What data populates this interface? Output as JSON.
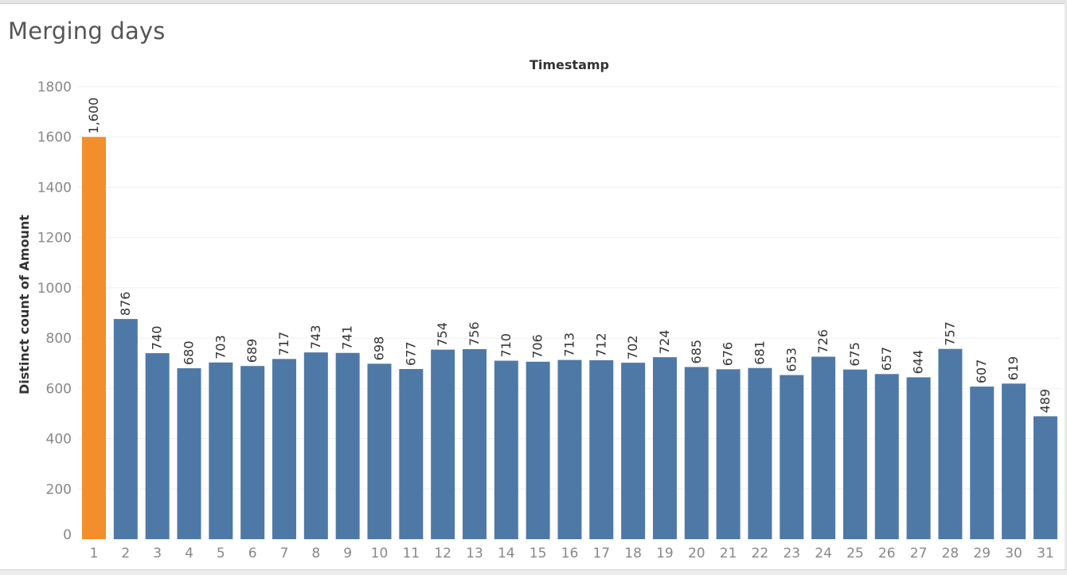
{
  "title": "Merging days",
  "chart_data": {
    "type": "bar",
    "title": "Merging days",
    "xlabel": "Timestamp",
    "ylabel": "Distinct count of Amount",
    "ylim": [
      0,
      1800
    ],
    "yticks": [
      0,
      200,
      400,
      600,
      800,
      1000,
      1200,
      1400,
      1600,
      1800
    ],
    "categories": [
      "1",
      "2",
      "3",
      "4",
      "5",
      "6",
      "7",
      "8",
      "9",
      "10",
      "11",
      "12",
      "13",
      "14",
      "15",
      "16",
      "17",
      "18",
      "19",
      "20",
      "21",
      "22",
      "23",
      "24",
      "25",
      "26",
      "27",
      "28",
      "29",
      "30",
      "31"
    ],
    "values": [
      1600,
      876,
      740,
      680,
      703,
      689,
      717,
      743,
      741,
      698,
      677,
      754,
      756,
      710,
      706,
      713,
      712,
      702,
      724,
      685,
      676,
      681,
      653,
      726,
      675,
      657,
      644,
      757,
      607,
      619,
      489
    ],
    "value_labels": [
      "1,600",
      "876",
      "740",
      "680",
      "703",
      "689",
      "717",
      "743",
      "741",
      "698",
      "677",
      "754",
      "756",
      "710",
      "706",
      "713",
      "712",
      "702",
      "724",
      "685",
      "676",
      "681",
      "653",
      "726",
      "675",
      "657",
      "644",
      "757",
      "607",
      "619",
      "489"
    ],
    "highlight_index": 0,
    "colors": {
      "bar": "#4e79a7",
      "highlight": "#f28e2b",
      "grid": "#efefef",
      "tick_text": "#888888",
      "label_text": "#333333",
      "axis_title": "#333333"
    },
    "grid": true
  }
}
